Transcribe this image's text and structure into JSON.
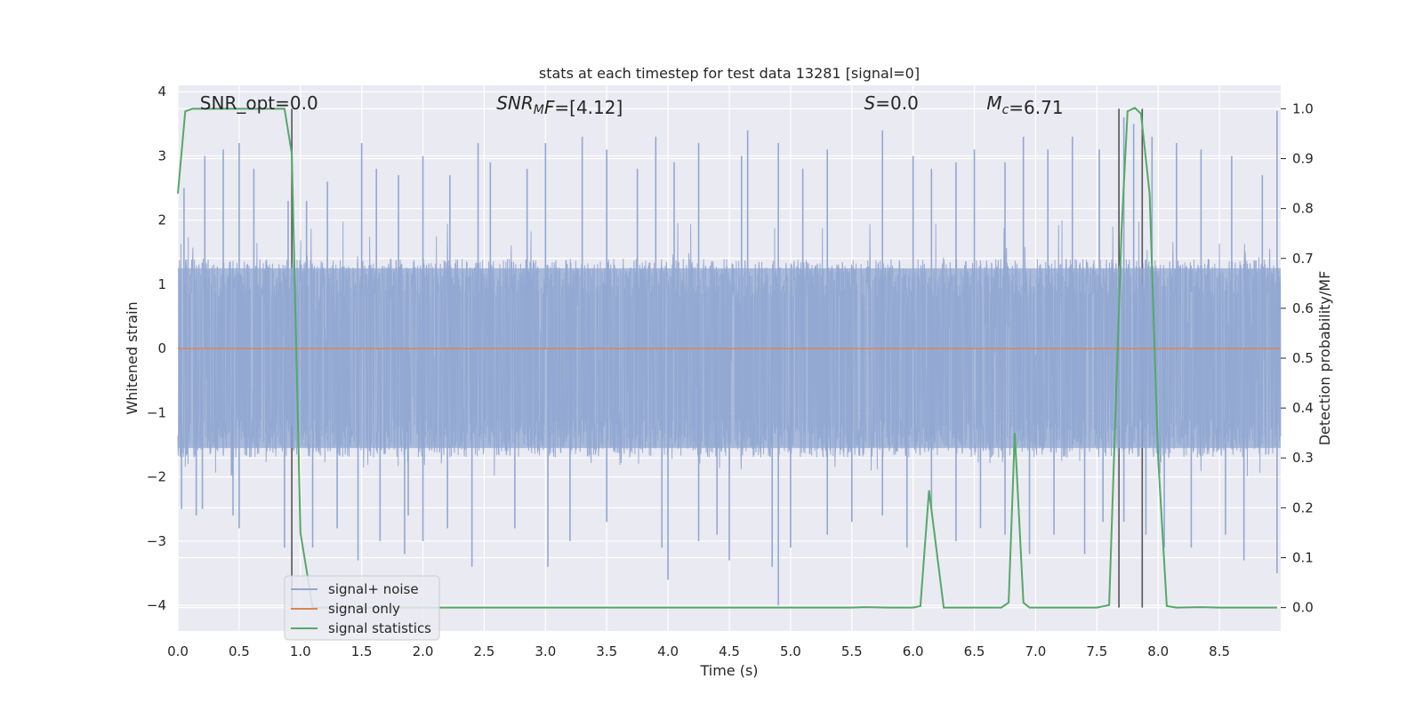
{
  "chart_data": {
    "type": "line",
    "title": "stats at each timestep for test data 13281 [signal=0]",
    "xlabel": "Time (s)",
    "ylabel_left": "Whitened strain",
    "ylabel_right": "Detection probability/MF",
    "xlim": [
      0.0,
      9.0
    ],
    "ylim_left": [
      -4.4,
      4.1
    ],
    "ylim_right": [
      -0.047,
      1.047
    ],
    "x_ticks": [
      "0.0",
      "0.5",
      "1.0",
      "1.5",
      "2.0",
      "2.5",
      "3.0",
      "3.5",
      "4.0",
      "4.5",
      "5.0",
      "5.5",
      "6.0",
      "6.5",
      "7.0",
      "7.5",
      "8.0",
      "8.5"
    ],
    "y_ticks_left": [
      "4",
      "3",
      "2",
      "1",
      "0",
      "−1",
      "−2",
      "−3",
      "−4"
    ],
    "y_ticks_right": [
      "1.0",
      "0.9",
      "0.8",
      "0.7",
      "0.6",
      "0.5",
      "0.4",
      "0.3",
      "0.2",
      "0.1",
      "0.0"
    ],
    "grid": true,
    "background": "#eaeaf2",
    "annotations": [
      {
        "parts": [
          {
            "t": "SNR_opt=0.0",
            "i": false
          }
        ],
        "x": 0.18
      },
      {
        "parts": [
          {
            "t": "SNR",
            "i": true
          },
          {
            "t": "M",
            "i": true,
            "sub": true
          },
          {
            "t": "F",
            "i": true
          },
          {
            "t": "=[4.12]",
            "i": false
          }
        ],
        "x": 2.6
      },
      {
        "parts": [
          {
            "t": "S",
            "i": true
          },
          {
            "t": "=0.0",
            "i": false
          }
        ],
        "x": 5.6
      },
      {
        "parts": [
          {
            "t": "M",
            "i": true
          },
          {
            "t": "c",
            "i": true,
            "sub": true
          },
          {
            "t": "=6.71",
            "i": false
          }
        ],
        "x": 6.6
      }
    ],
    "vlines": [
      0.93,
      7.68,
      7.87
    ],
    "series": [
      {
        "name": "signal+ noise",
        "color": "#92a8d1",
        "axis": "left",
        "description": "whitened strain noise, band roughly ±1.4 with spikes to about ±3.5",
        "band": [
          -1.7,
          1.4
        ],
        "spikes_positive": [
          [
            0.05,
            2.5
          ],
          [
            0.22,
            3.0
          ],
          [
            0.37,
            3.1
          ],
          [
            0.5,
            3.2
          ],
          [
            0.62,
            2.8
          ],
          [
            0.9,
            2.3
          ],
          [
            1.05,
            2.3
          ],
          [
            1.22,
            2.6
          ],
          [
            1.5,
            3.2
          ],
          [
            1.62,
            2.8
          ],
          [
            1.8,
            2.7
          ],
          [
            2.0,
            3.0
          ],
          [
            2.22,
            2.7
          ],
          [
            2.45,
            3.2
          ],
          [
            2.55,
            2.9
          ],
          [
            2.85,
            2.8
          ],
          [
            3.0,
            3.2
          ],
          [
            3.3,
            3.3
          ],
          [
            3.5,
            3.1
          ],
          [
            3.75,
            2.8
          ],
          [
            3.9,
            3.3
          ],
          [
            4.05,
            2.9
          ],
          [
            4.25,
            3.2
          ],
          [
            4.6,
            3.0
          ],
          [
            4.65,
            3.4
          ],
          [
            4.9,
            3.2
          ],
          [
            5.1,
            2.8
          ],
          [
            5.3,
            3.1
          ],
          [
            5.75,
            3.4
          ],
          [
            6.0,
            3.0
          ],
          [
            6.15,
            2.8
          ],
          [
            6.35,
            2.9
          ],
          [
            6.5,
            3.1
          ],
          [
            6.75,
            2.9
          ],
          [
            6.9,
            3.3
          ],
          [
            7.1,
            3.1
          ],
          [
            7.3,
            3.3
          ],
          [
            7.52,
            3.1
          ],
          [
            7.72,
            3.6
          ],
          [
            7.8,
            3.5
          ],
          [
            7.95,
            3.3
          ],
          [
            8.15,
            3.2
          ],
          [
            8.35,
            3.1
          ],
          [
            8.6,
            3.0
          ],
          [
            8.85,
            2.7
          ],
          [
            8.97,
            3.7
          ]
        ],
        "spikes_negative": [
          [
            0.03,
            -2.5
          ],
          [
            0.15,
            -2.6
          ],
          [
            0.2,
            -2.5
          ],
          [
            0.45,
            -2.6
          ],
          [
            0.5,
            -2.8
          ],
          [
            0.87,
            -3.1
          ],
          [
            1.1,
            -3.1
          ],
          [
            1.3,
            -2.8
          ],
          [
            1.47,
            -3.3
          ],
          [
            1.65,
            -3.0
          ],
          [
            1.85,
            -3.2
          ],
          [
            1.88,
            -2.6
          ],
          [
            2.0,
            -3.0
          ],
          [
            2.2,
            -2.8
          ],
          [
            2.4,
            -3.4
          ],
          [
            2.75,
            -2.8
          ],
          [
            3.02,
            -3.4
          ],
          [
            3.2,
            -3.0
          ],
          [
            3.5,
            -2.7
          ],
          [
            3.95,
            -3.1
          ],
          [
            4.0,
            -3.6
          ],
          [
            4.25,
            -3.0
          ],
          [
            4.4,
            -2.9
          ],
          [
            4.5,
            -3.3
          ],
          [
            4.85,
            -3.4
          ],
          [
            4.9,
            -4.0
          ],
          [
            5.0,
            -3.1
          ],
          [
            5.3,
            -2.9
          ],
          [
            5.5,
            -2.7
          ],
          [
            5.75,
            -2.6
          ],
          [
            5.95,
            -3.1
          ],
          [
            6.15,
            -2.5
          ],
          [
            6.35,
            -3.0
          ],
          [
            6.55,
            -2.8
          ],
          [
            6.75,
            -2.9
          ],
          [
            6.95,
            -3.2
          ],
          [
            7.15,
            -2.9
          ],
          [
            7.4,
            -3.2
          ],
          [
            7.55,
            -2.7
          ],
          [
            7.72,
            -2.7
          ],
          [
            7.9,
            -2.9
          ],
          [
            8.05,
            -3.1
          ],
          [
            8.27,
            -3.1
          ],
          [
            8.55,
            -2.9
          ],
          [
            8.7,
            -3.3
          ],
          [
            8.97,
            -3.5
          ]
        ]
      },
      {
        "name": "signal only",
        "color": "#dd8452",
        "axis": "left",
        "x": [
          0.0,
          9.0
        ],
        "y": [
          0.0,
          0.0
        ]
      },
      {
        "name": "signal statistics",
        "color": "#55a868",
        "axis": "right",
        "x": [
          0.0,
          0.06,
          0.12,
          0.2,
          0.4,
          0.6,
          0.8,
          0.87,
          0.93,
          1.0,
          1.1,
          1.5,
          2.0,
          3.0,
          4.0,
          5.0,
          5.5,
          5.6,
          5.8,
          6.0,
          6.06,
          6.13,
          6.25,
          6.5,
          6.72,
          6.78,
          6.83,
          6.9,
          6.95,
          7.2,
          7.5,
          7.6,
          7.7,
          7.75,
          7.81,
          7.86,
          7.93,
          8.0,
          8.07,
          8.15,
          8.35,
          8.5,
          8.97
        ],
        "y": [
          0.83,
          0.995,
          1.0,
          1.0,
          1.0,
          1.0,
          1.0,
          1.0,
          0.91,
          0.15,
          0.0,
          0.0,
          0.0,
          0.0,
          0.0,
          0.0,
          0.0,
          0.001,
          0.0,
          0.0,
          0.003,
          0.235,
          0.0,
          0.0,
          0.0,
          0.01,
          0.35,
          0.01,
          0.0,
          0.0,
          0.0,
          0.005,
          0.75,
          0.995,
          1.002,
          0.99,
          0.83,
          0.3,
          0.003,
          0.0,
          0.001,
          0.0,
          0.0
        ]
      }
    ],
    "legend": {
      "placement": "lower-left"
    }
  }
}
